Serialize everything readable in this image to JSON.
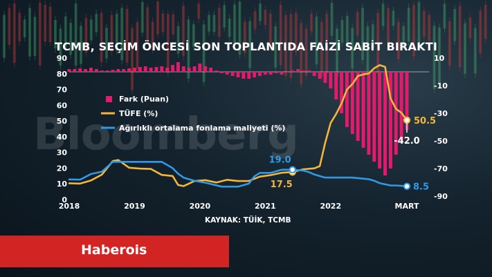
{
  "watermark": "Bloomberg",
  "brand": {
    "name": "Haberois",
    "color": "#d32424"
  },
  "source_text": "KAYNAK: TÜİK, TCMB",
  "chart_data": {
    "type": "line",
    "title": "TCMB, SEÇİM ÖNCESİ SON TOPLANTIDA FAİZİ SABİT BIRAKTI",
    "x_tick_labels": [
      "2018",
      "2019",
      "2020",
      "2021",
      "2022",
      "MART"
    ],
    "xlim": [
      "2018-01",
      "2023-03"
    ],
    "y_left": {
      "ylim": [
        0,
        90
      ],
      "ticks": [
        0,
        10,
        20,
        30,
        40,
        50,
        60,
        70,
        80,
        90
      ]
    },
    "y_right": {
      "ylim": [
        -90,
        10
      ],
      "ticks": [
        10,
        -10,
        -30,
        -50,
        -70,
        -90
      ]
    },
    "legend": {
      "position": "left",
      "entries": [
        "Fark (Puan)",
        "TÜFE (%)",
        "Ağırlıklı ortalama fonlama maliyeti (%)"
      ]
    },
    "series": [
      {
        "name": "Fark (Puan)",
        "type": "bar",
        "axis": "right",
        "color": "#e6196d",
        "x": [
          "2018-01",
          "2018-02",
          "2018-03",
          "2018-04",
          "2018-05",
          "2018-06",
          "2018-07",
          "2018-08",
          "2018-09",
          "2018-10",
          "2018-11",
          "2018-12",
          "2019-01",
          "2019-02",
          "2019-03",
          "2019-04",
          "2019-05",
          "2019-06",
          "2019-07",
          "2019-08",
          "2019-09",
          "2019-10",
          "2019-11",
          "2019-12",
          "2020-01",
          "2020-02",
          "2020-03",
          "2020-04",
          "2020-05",
          "2020-06",
          "2020-07",
          "2020-08",
          "2020-09",
          "2020-10",
          "2020-11",
          "2020-12",
          "2021-01",
          "2021-02",
          "2021-03",
          "2021-04",
          "2021-05",
          "2021-06",
          "2021-07",
          "2021-08",
          "2021-09",
          "2021-10",
          "2021-11",
          "2021-12",
          "2022-01",
          "2022-02",
          "2022-03",
          "2022-04",
          "2022-05",
          "2022-06",
          "2022-07",
          "2022-08",
          "2022-09",
          "2022-10",
          "2022-11",
          "2022-12",
          "2023-01",
          "2023-02",
          "2023-03"
        ],
        "values": [
          2,
          2,
          2.5,
          2,
          3,
          2,
          1,
          1,
          1.5,
          2,
          2,
          2.5,
          3,
          3.5,
          4,
          3,
          3.5,
          4,
          3,
          5,
          7,
          4,
          3,
          4,
          6,
          4,
          3,
          1,
          -1,
          -2,
          -3,
          -4,
          -5,
          -5,
          -4,
          -3,
          -2,
          -2,
          -1,
          -2,
          0,
          1,
          2,
          1,
          1,
          -3,
          -5,
          -8,
          -12,
          -20,
          -30,
          -40,
          -45,
          -50,
          -55,
          -60,
          -65,
          -70,
          -75,
          -70,
          -60,
          -50,
          -42
        ]
      },
      {
        "name": "TÜFE (%)",
        "type": "line",
        "axis": "left",
        "color": "#f5b63a",
        "x": [
          "2018-01",
          "2018-03",
          "2018-05",
          "2018-07",
          "2018-09",
          "2018-10",
          "2018-12",
          "2019-02",
          "2019-04",
          "2019-06",
          "2019-08",
          "2019-09",
          "2019-10",
          "2019-12",
          "2020-02",
          "2020-04",
          "2020-06",
          "2020-08",
          "2020-10",
          "2020-12",
          "2021-02",
          "2021-04",
          "2021-06",
          "2021-08",
          "2021-10",
          "2021-11",
          "2021-12",
          "2022-01",
          "2022-02",
          "2022-03",
          "2022-04",
          "2022-05",
          "2022-06",
          "2022-07",
          "2022-08",
          "2022-09",
          "2022-10",
          "2022-11",
          "2022-12",
          "2023-01",
          "2023-02",
          "2023-03"
        ],
        "values": [
          10.4,
          10.2,
          12.2,
          15.9,
          24.5,
          25.2,
          20.3,
          19.7,
          19.5,
          15.7,
          15.0,
          9.3,
          8.6,
          11.8,
          12.4,
          10.9,
          12.6,
          11.8,
          11.9,
          14.6,
          15.6,
          17.1,
          17.5,
          19.3,
          19.9,
          21.3,
          36.1,
          48.7,
          54.4,
          61.1,
          70.0,
          73.5,
          78.6,
          79.6,
          80.2,
          83.5,
          85.5,
          84.4,
          64.3,
          57.7,
          55.2,
          50.5
        ],
        "annotations": [
          {
            "x": "2021-06",
            "value": 17.5,
            "label": "17.5"
          },
          {
            "x": "2023-03",
            "value": 50.5,
            "label": "50.5"
          }
        ]
      },
      {
        "name": "Ağırlıklı ortalama fonlama maliyeti (%)",
        "type": "line",
        "axis": "left",
        "color": "#2f9ae8",
        "x": [
          "2018-01",
          "2018-03",
          "2018-05",
          "2018-07",
          "2018-09",
          "2018-12",
          "2019-03",
          "2019-06",
          "2019-08",
          "2019-09",
          "2019-10",
          "2019-12",
          "2020-02",
          "2020-05",
          "2020-08",
          "2020-10",
          "2020-11",
          "2020-12",
          "2021-02",
          "2021-04",
          "2021-06",
          "2021-08",
          "2021-09",
          "2021-10",
          "2021-12",
          "2022-02",
          "2022-05",
          "2022-08",
          "2022-09",
          "2022-10",
          "2022-12",
          "2023-01",
          "2023-03"
        ],
        "values": [
          12.8,
          12.7,
          16.3,
          17.8,
          24.0,
          24.0,
          24.0,
          24.0,
          20.0,
          16.5,
          14.0,
          12.0,
          10.75,
          8.25,
          8.25,
          10.25,
          14.8,
          17.0,
          17.0,
          19.0,
          19.0,
          18.5,
          17.5,
          16.0,
          14.0,
          14.0,
          14.0,
          13.0,
          12.0,
          10.5,
          9.0,
          9.0,
          8.5
        ],
        "annotations": [
          {
            "x": "2021-06",
            "value": 19.0,
            "label": "19.0"
          },
          {
            "x": "2023-03",
            "value": 8.5,
            "label": "8.5"
          }
        ]
      }
    ],
    "bar_annotation": {
      "x": "2023-03",
      "value": -42.0,
      "label": "-42.0"
    },
    "grid": false,
    "baseline_line_right_value": 0
  }
}
